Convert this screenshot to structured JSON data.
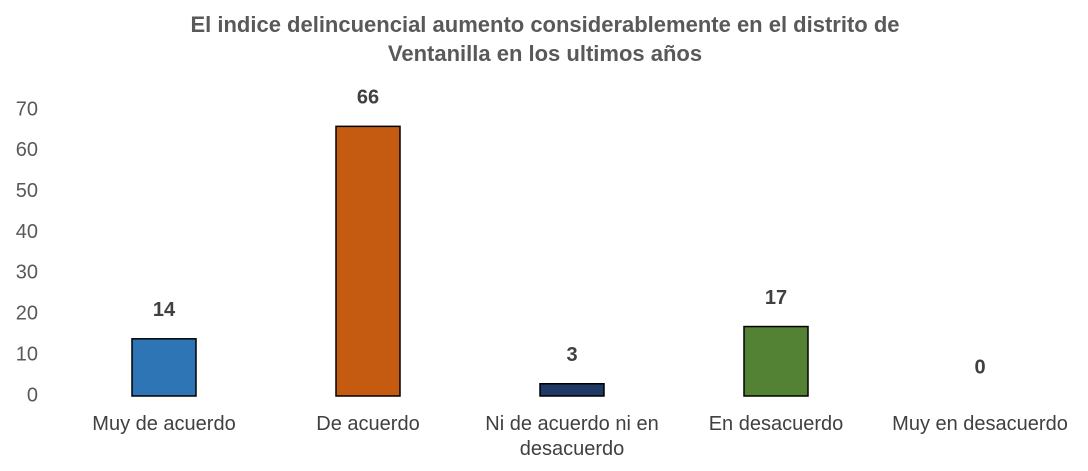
{
  "chart_data": {
    "type": "bar",
    "title": "El indice delincuencial aumento considerablemente en el distrito de Ventanilla en los ultimos años",
    "categories": [
      "Muy de acuerdo",
      "De acuerdo",
      "Ni de acuerdo ni en desacuerdo",
      "En desacuerdo",
      "Muy en desacuerdo"
    ],
    "values": [
      14,
      66,
      3,
      17,
      0
    ],
    "colors": [
      "#2e75b6",
      "#c55a11",
      "#1f3864",
      "#548235",
      "#ffc000"
    ],
    "ylim": [
      0,
      70
    ],
    "yticks": [
      0,
      10,
      20,
      30,
      40,
      50,
      60,
      70
    ],
    "grid": false
  }
}
